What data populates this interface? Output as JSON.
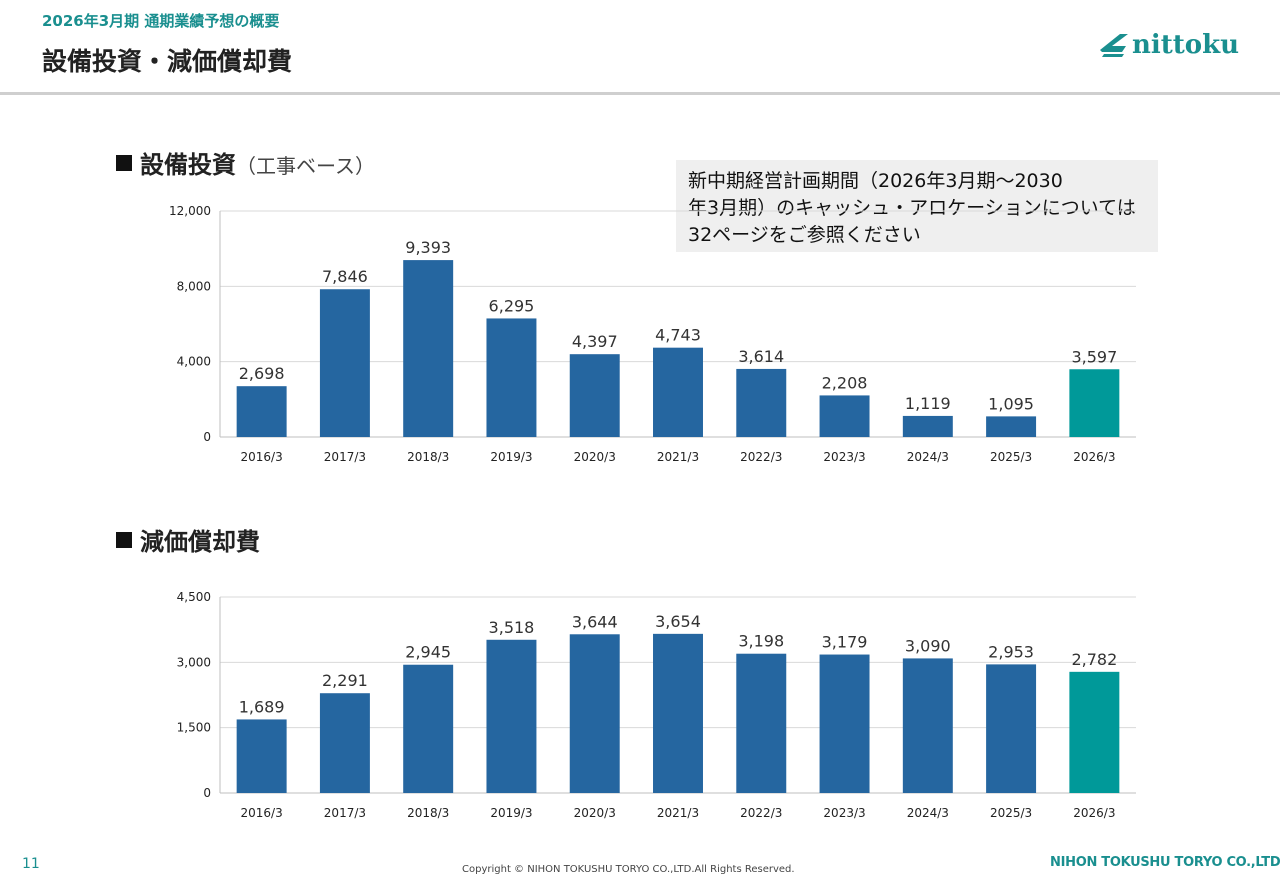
{
  "header": {
    "subtitle": "2026年3月期 通期業績予想の概要",
    "title": "設備投資・減価償却費",
    "logo_text": "nittoku"
  },
  "sections": {
    "capex_title": "設備投資",
    "capex_paren": "（工事ベース）",
    "depreciation_title": "減価償却費"
  },
  "note": {
    "line1": "新中期経営計画期間（2026年3月期～2030",
    "line2": "年3月期）のキャッシュ・アロケーションについては",
    "line3": "32ページをご参照ください"
  },
  "footer": {
    "page_number": "11",
    "copyright": "Copyright © NIHON TOKUSHU TORYO CO.,LTD.All Rights Reserved.",
    "company": "NIHON TOKUSHU TORYO CO.,LTD."
  },
  "colors": {
    "bar": "#2566a0",
    "highlight_bar": "#009999",
    "accent": "#1a8f8f"
  },
  "chart_data": [
    {
      "type": "bar",
      "title": "設備投資（工事ベース）",
      "categories": [
        "2016/3",
        "2017/3",
        "2018/3",
        "2019/3",
        "2020/3",
        "2021/3",
        "2022/3",
        "2023/3",
        "2024/3",
        "2025/3",
        "2026/3"
      ],
      "values": [
        2698,
        7846,
        9393,
        6295,
        4397,
        4743,
        3614,
        2208,
        1119,
        1095,
        3597
      ],
      "value_labels": [
        "2,698",
        "7,846",
        "9,393",
        "6,295",
        "4,397",
        "4,743",
        "3,614",
        "2,208",
        "1,119",
        "1,095",
        "3,597"
      ],
      "highlight_index": 10,
      "ylim": [
        0,
        12000
      ],
      "yticks": [
        0,
        4000,
        8000,
        12000
      ],
      "ytick_labels": [
        "0",
        "4,000",
        "8,000",
        "12,000"
      ],
      "grid": true
    },
    {
      "type": "bar",
      "title": "減価償却費",
      "categories": [
        "2016/3",
        "2017/3",
        "2018/3",
        "2019/3",
        "2020/3",
        "2021/3",
        "2022/3",
        "2023/3",
        "2024/3",
        "2025/3",
        "2026/3"
      ],
      "values": [
        1689,
        2291,
        2945,
        3518,
        3644,
        3654,
        3198,
        3179,
        3090,
        2953,
        2782
      ],
      "value_labels": [
        "1,689",
        "2,291",
        "2,945",
        "3,518",
        "3,644",
        "3,654",
        "3,198",
        "3,179",
        "3,090",
        "2,953",
        "2,782"
      ],
      "highlight_index": 10,
      "ylim": [
        0,
        4500
      ],
      "yticks": [
        0,
        1500,
        3000,
        4500
      ],
      "ytick_labels": [
        "0",
        "1,500",
        "3,000",
        "4,500"
      ],
      "grid": true
    }
  ]
}
